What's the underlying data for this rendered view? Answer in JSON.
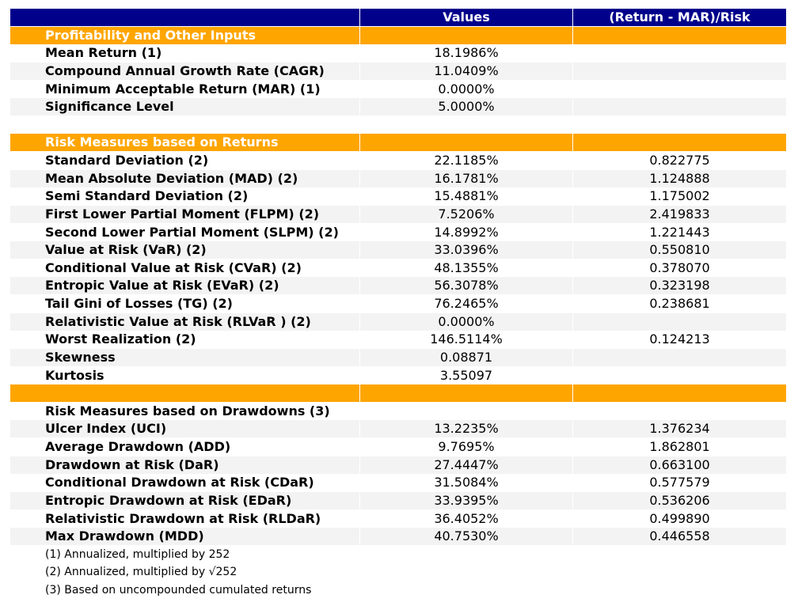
{
  "header": {
    "columns": [
      "Values",
      "(Return - MAR)/Risk"
    ]
  },
  "rows": [
    {
      "style": "section",
      "label": "Profitability and Other Inputs"
    },
    {
      "style": "data",
      "label": "Mean Return (1)",
      "value": "18.1986%"
    },
    {
      "style": "data",
      "label": "Compound Annual Growth Rate (CAGR)",
      "value": "11.0409%"
    },
    {
      "style": "data",
      "label": "Minimum Acceptable Return (MAR) (1)",
      "value": "0.0000%"
    },
    {
      "style": "data",
      "label": "Significance Level",
      "value": "5.0000%"
    },
    {
      "style": "blank"
    },
    {
      "style": "section",
      "label": "Risk Measures based on Returns"
    },
    {
      "style": "data",
      "label": "Standard Deviation (2)",
      "value": "22.1185%",
      "ratio": "0.822775"
    },
    {
      "style": "data",
      "label": "Mean Absolute Deviation (MAD) (2)",
      "value": "16.1781%",
      "ratio": "1.124888"
    },
    {
      "style": "data",
      "label": "Semi Standard Deviation (2)",
      "value": "15.4881%",
      "ratio": "1.175002"
    },
    {
      "style": "data",
      "label": "First Lower Partial Moment (FLPM) (2)",
      "value": "7.5206%",
      "ratio": "2.419833"
    },
    {
      "style": "data",
      "label": "Second Lower Partial Moment (SLPM) (2)",
      "value": "14.8992%",
      "ratio": "1.221443"
    },
    {
      "style": "data",
      "label": "Value at Risk (VaR) (2)",
      "value": "33.0396%",
      "ratio": "0.550810"
    },
    {
      "style": "data",
      "label": "Conditional Value at Risk (CVaR) (2)",
      "value": "48.1355%",
      "ratio": "0.378070"
    },
    {
      "style": "data",
      "label": "Entropic Value at Risk (EVaR) (2)",
      "value": "56.3078%",
      "ratio": "0.323198"
    },
    {
      "style": "data",
      "label": "Tail Gini of Losses (TG) (2)",
      "value": "76.2465%",
      "ratio": "0.238681"
    },
    {
      "style": "data",
      "label": "Relativistic Value at Risk (RLVaR ) (2)",
      "value": "0.0000%"
    },
    {
      "style": "data",
      "label": "Worst Realization (2)",
      "value": "146.5114%",
      "ratio": "0.124213"
    },
    {
      "style": "data",
      "label": "Skewness",
      "value": "0.08871"
    },
    {
      "style": "data",
      "label": "Kurtosis",
      "value": "3.55097"
    },
    {
      "style": "section"
    },
    {
      "style": "data",
      "label": "Risk Measures based on Drawdowns (3)"
    },
    {
      "style": "data",
      "label": "Ulcer Index (UCI)",
      "value": "13.2235%",
      "ratio": "1.376234"
    },
    {
      "style": "data",
      "label": "Average Drawdown (ADD)",
      "value": "9.7695%",
      "ratio": "1.862801"
    },
    {
      "style": "data",
      "label": "Drawdown at Risk (DaR)",
      "value": "27.4447%",
      "ratio": "0.663100"
    },
    {
      "style": "data",
      "label": "Conditional Drawdown at Risk (CDaR)",
      "value": "31.5084%",
      "ratio": "0.577579"
    },
    {
      "style": "data",
      "label": "Entropic Drawdown at Risk (EDaR)",
      "value": "33.9395%",
      "ratio": "0.536206"
    },
    {
      "style": "data",
      "label": "Relativistic Drawdown at Risk (RLDaR)",
      "value": "36.4052%",
      "ratio": "0.499890"
    },
    {
      "style": "data",
      "label": "Max Drawdown (MDD)",
      "value": "40.7530%",
      "ratio": "0.446558"
    }
  ],
  "footnotes": [
    "(1) Annualized, multiplied by 252",
    "(2) Annualized, multiplied by √252",
    "(3) Based on uncompounded cumulated returns"
  ]
}
